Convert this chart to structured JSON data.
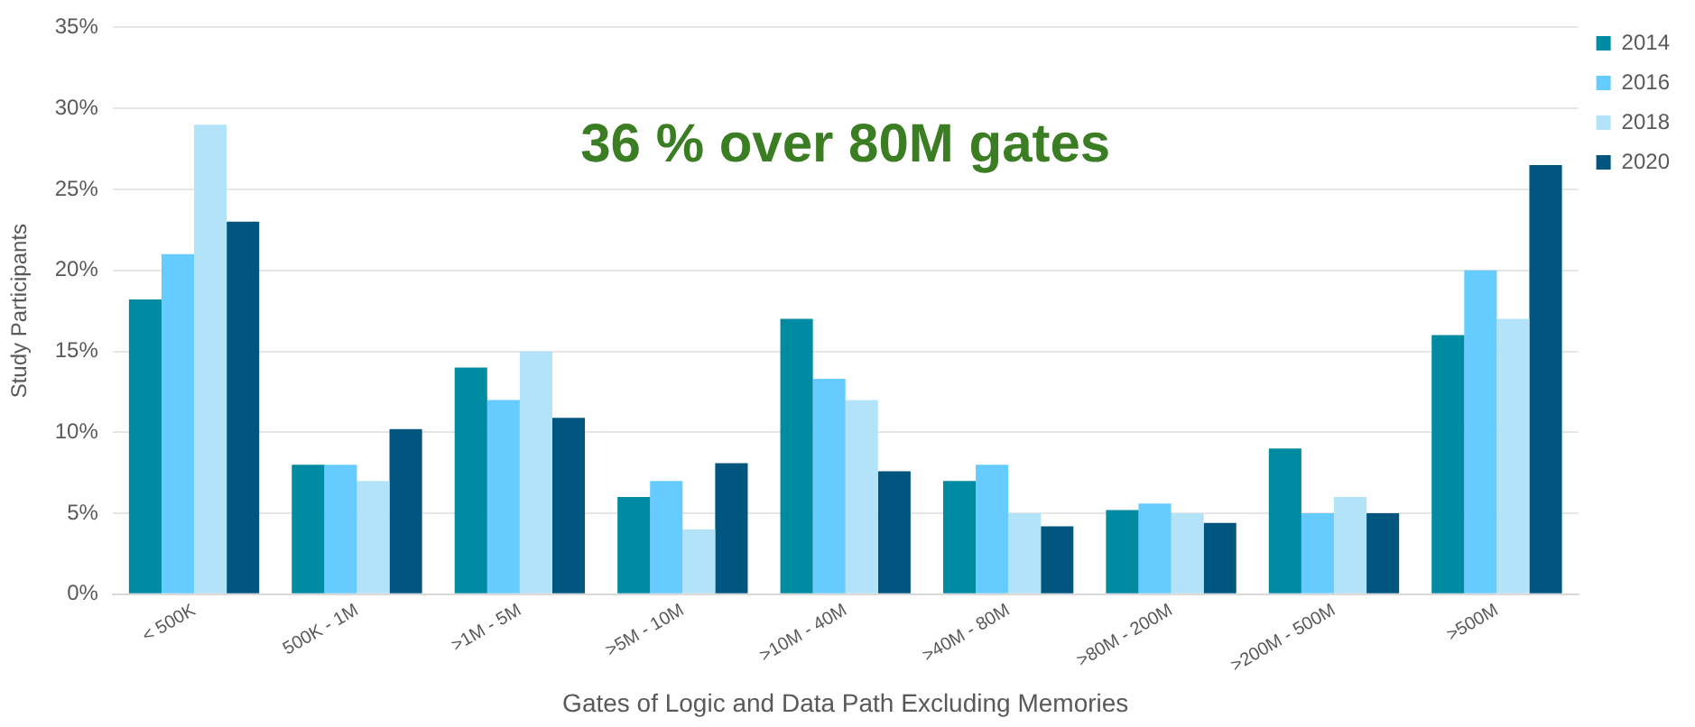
{
  "chart_data": {
    "type": "bar",
    "xlabel": "Gates of Logic and Data Path Excluding Memories",
    "ylabel": "Study Participants",
    "annotations": [
      "36 % over 80M gates"
    ],
    "categories": [
      "< 500K",
      "500K - 1M",
      ">1M - 5M",
      ">5M - 10M",
      ">10M - 40M",
      ">40M - 80M",
      ">80M - 200M",
      ">200M - 500M",
      ">500M"
    ],
    "series": [
      {
        "name": "2014",
        "color": "#008ba3",
        "values": [
          18.2,
          8,
          14,
          6,
          17,
          7,
          5.2,
          9,
          16
        ]
      },
      {
        "name": "2016",
        "color": "#66ccff",
        "values": [
          21,
          8,
          12,
          7,
          13.3,
          8,
          5.6,
          5,
          20
        ]
      },
      {
        "name": "2018",
        "color": "#b3e3f9",
        "values": [
          29,
          7,
          15,
          4,
          12,
          5,
          5,
          6,
          17
        ]
      },
      {
        "name": "2020",
        "color": "#00567e",
        "values": [
          23,
          10.2,
          10.9,
          8.1,
          7.6,
          4.2,
          4.4,
          5,
          26.5
        ]
      }
    ],
    "ylim": [
      0,
      35
    ],
    "yticks": [
      {
        "value": 0,
        "label": "0%"
      },
      {
        "value": 5,
        "label": "5%"
      },
      {
        "value": 10,
        "label": "10%"
      },
      {
        "value": 15,
        "label": "15%"
      },
      {
        "value": 20,
        "label": "20%"
      },
      {
        "value": 25,
        "label": "25%"
      },
      {
        "value": 30,
        "label": "30%"
      },
      {
        "value": 35,
        "label": "35%"
      }
    ],
    "grid": "y",
    "legend": "top right"
  }
}
